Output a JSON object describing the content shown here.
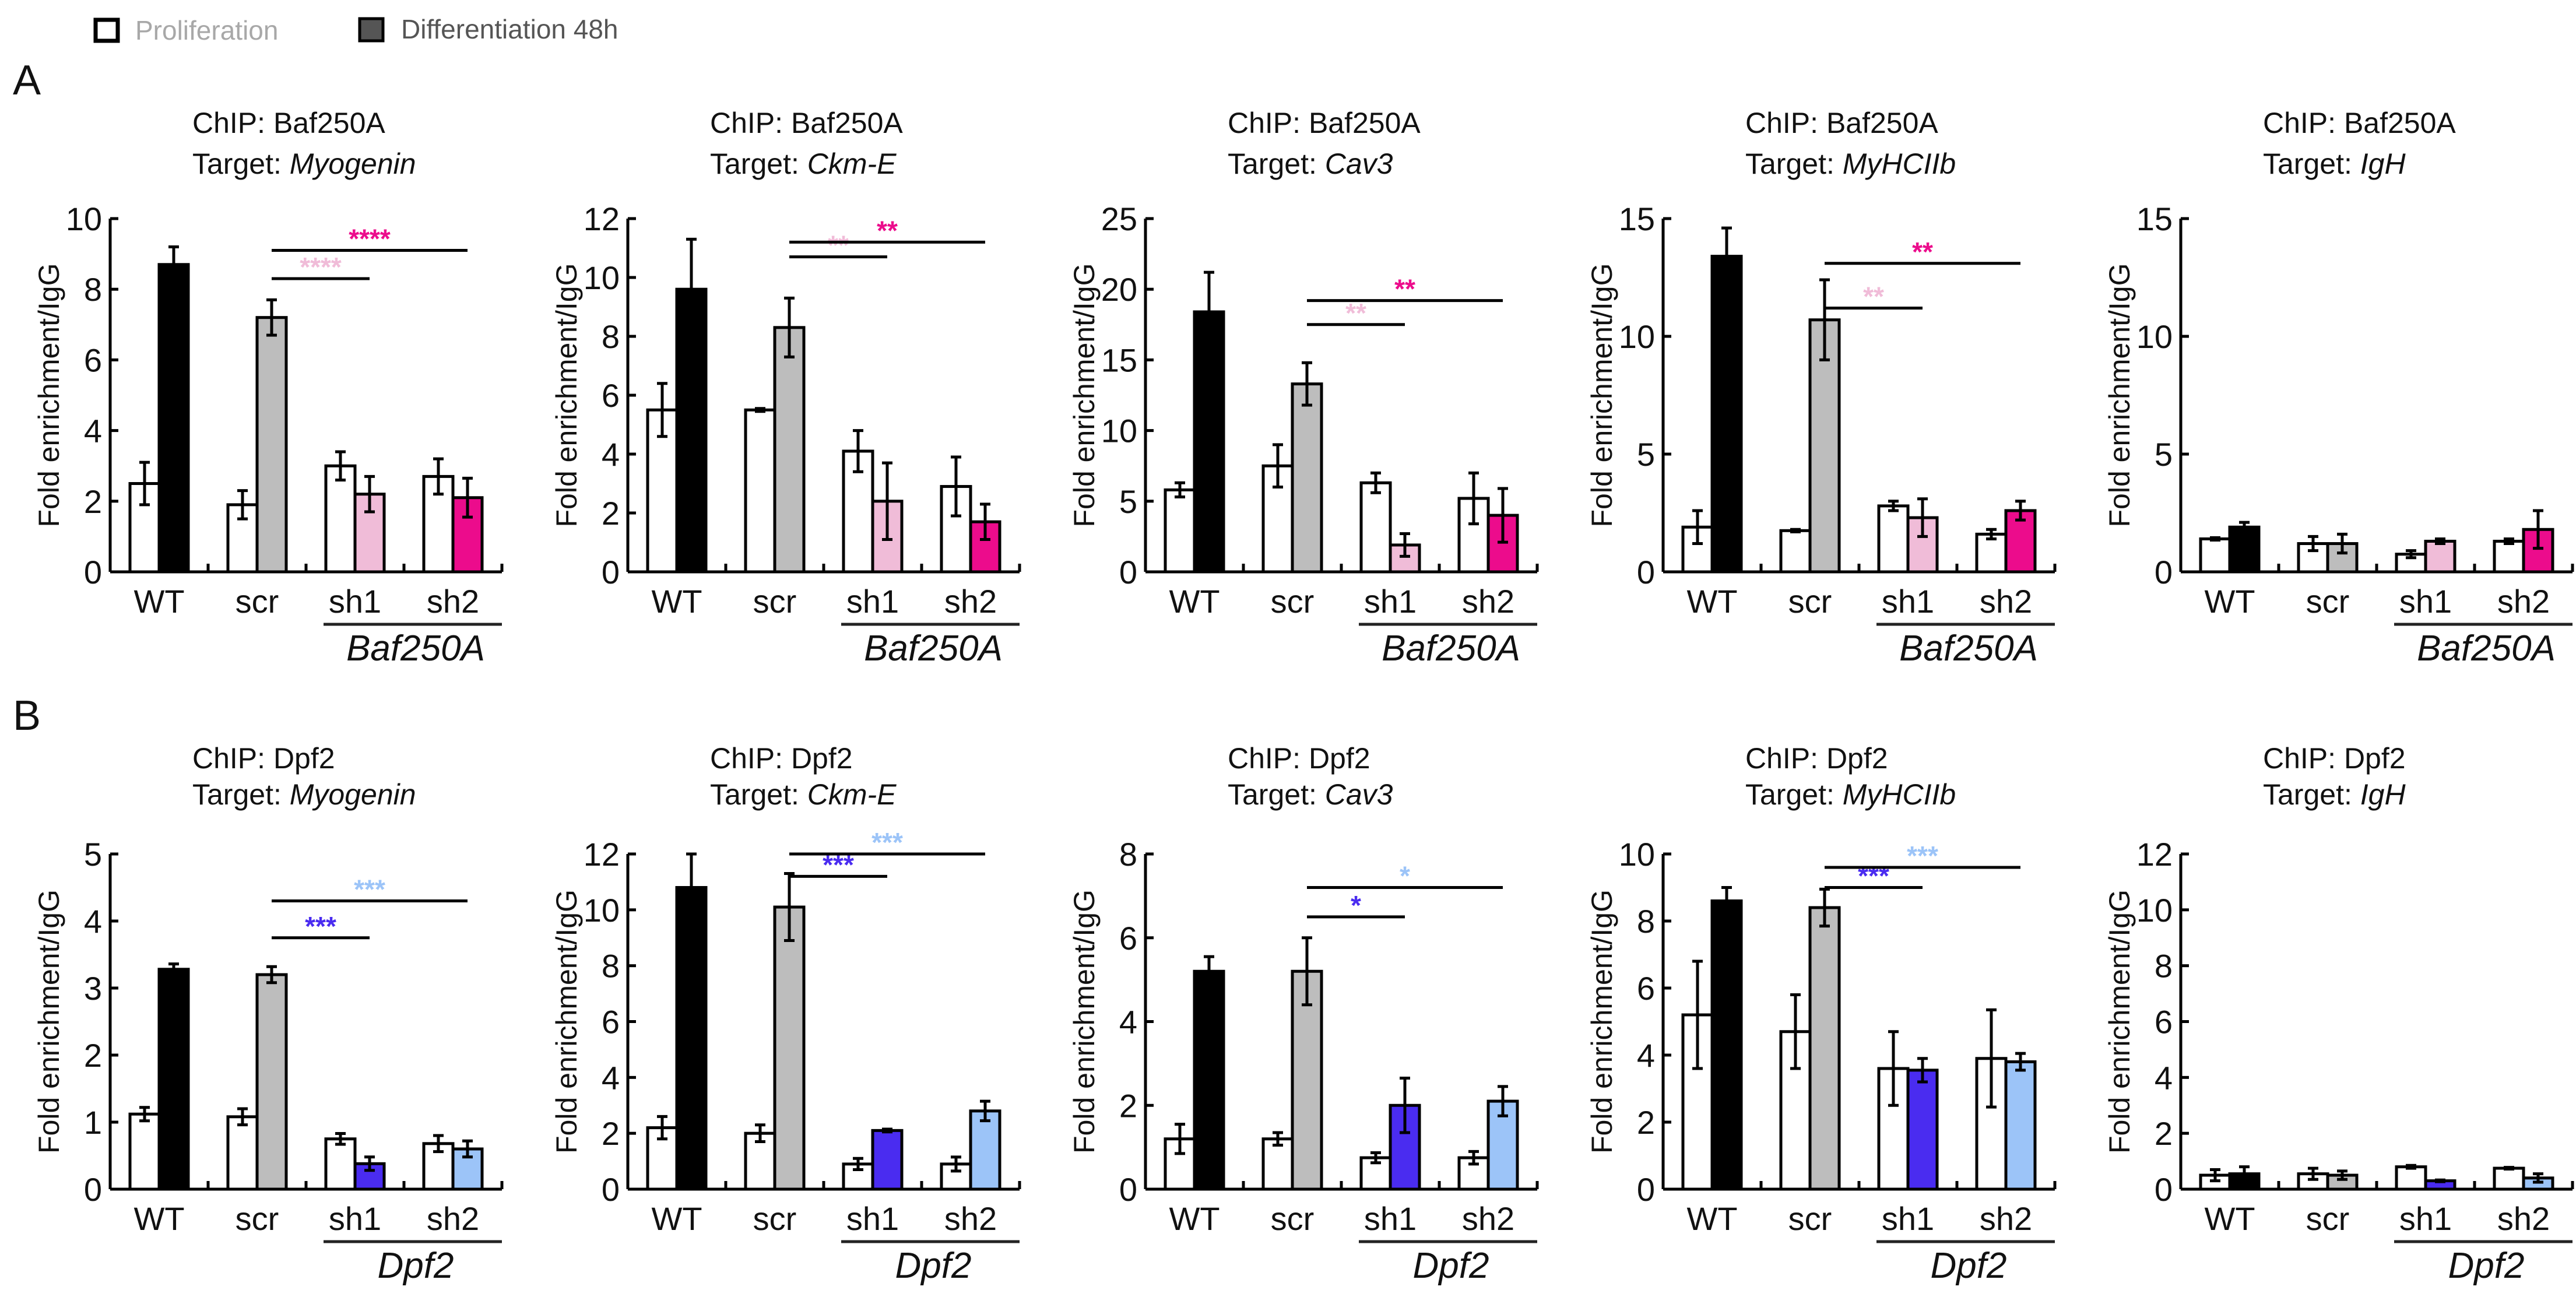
{
  "legend": {
    "items": [
      {
        "label": "Proliferation",
        "color": "#ffffff",
        "text_color": "#a8a8a8"
      },
      {
        "label": "Differentiation 48h",
        "color": "#555555",
        "text_color": "#555555"
      }
    ]
  },
  "panel_letters": [
    "A",
    "B"
  ],
  "chart_data": [
    {
      "type": "bar",
      "row": 0,
      "chip": "ChIP: Baf250A",
      "target_prefix": "Target: ",
      "target": "Myogenin",
      "ylabel": "Fold enrichment/IgG",
      "ylim": [
        0,
        10
      ],
      "yticks": [
        0,
        2,
        4,
        6,
        8,
        10
      ],
      "categories": [
        "WT",
        "scr",
        "sh1",
        "sh2"
      ],
      "group_label": "Baf250A",
      "series": [
        {
          "name": "Proliferation",
          "values": [
            2.5,
            1.9,
            3.0,
            2.7
          ],
          "errors": [
            0.6,
            0.4,
            0.4,
            0.5
          ]
        },
        {
          "name": "Differentiation 48h",
          "values": [
            8.7,
            7.2,
            2.2,
            2.1
          ],
          "errors": [
            0.5,
            0.5,
            0.5,
            0.55
          ]
        }
      ],
      "diff_colors": [
        "#000000",
        "#bdbdbd",
        "#f0bcd8",
        "#ec0c8c"
      ],
      "significance": [
        {
          "from": "scr",
          "to": "sh1",
          "label": "****",
          "color": "#f0bcd8",
          "y": 8.3
        },
        {
          "from": "scr",
          "to": "sh2",
          "label": "****",
          "color": "#ec0c8c",
          "y": 9.1
        }
      ]
    },
    {
      "type": "bar",
      "row": 0,
      "chip": "ChIP: Baf250A",
      "target_prefix": "Target: ",
      "target": "Ckm-E",
      "ylabel": "Fold enrichment/IgG",
      "ylim": [
        0,
        12
      ],
      "yticks": [
        0,
        2,
        4,
        6,
        8,
        10,
        12
      ],
      "categories": [
        "WT",
        "scr",
        "sh1",
        "sh2"
      ],
      "group_label": "Baf250A",
      "series": [
        {
          "name": "Proliferation",
          "values": [
            5.5,
            5.5,
            4.1,
            2.9
          ],
          "errors": [
            0.9,
            0.05,
            0.7,
            1.0
          ]
        },
        {
          "name": "Differentiation 48h",
          "values": [
            9.6,
            8.3,
            2.4,
            1.7
          ],
          "errors": [
            1.7,
            1.0,
            1.3,
            0.6
          ]
        }
      ],
      "diff_colors": [
        "#000000",
        "#bdbdbd",
        "#f0bcd8",
        "#ec0c8c"
      ],
      "significance": [
        {
          "from": "scr",
          "to": "sh1",
          "label": "**",
          "color": "#f0bcd8",
          "y": 10.7
        },
        {
          "from": "scr",
          "to": "sh2",
          "label": "**",
          "color": "#ec0c8c",
          "y": 11.2
        }
      ]
    },
    {
      "type": "bar",
      "row": 0,
      "chip": "ChIP: Baf250A",
      "target_prefix": "Target: ",
      "target": "Cav3",
      "ylabel": "Fold enrichment/IgG",
      "ylim": [
        0,
        25
      ],
      "yticks": [
        0,
        5,
        10,
        15,
        20,
        25
      ],
      "categories": [
        "WT",
        "scr",
        "sh1",
        "sh2"
      ],
      "group_label": "Baf250A",
      "series": [
        {
          "name": "Proliferation",
          "values": [
            5.8,
            7.5,
            6.3,
            5.2
          ],
          "errors": [
            0.5,
            1.5,
            0.7,
            1.8
          ]
        },
        {
          "name": "Differentiation 48h",
          "values": [
            18.4,
            13.3,
            1.9,
            4.0
          ],
          "errors": [
            2.8,
            1.5,
            0.8,
            1.9
          ]
        }
      ],
      "diff_colors": [
        "#000000",
        "#bdbdbd",
        "#f0bcd8",
        "#ec0c8c"
      ],
      "significance": [
        {
          "from": "scr",
          "to": "sh1",
          "label": "**",
          "color": "#f0bcd8",
          "y": 17.5
        },
        {
          "from": "scr",
          "to": "sh2",
          "label": "**",
          "color": "#ec0c8c",
          "y": 19.2
        }
      ]
    },
    {
      "type": "bar",
      "row": 0,
      "chip": "ChIP: Baf250A",
      "target_prefix": "Target: ",
      "target": "MyHCIIb",
      "ylabel": "Fold enrichment/IgG",
      "ylim": [
        0,
        15
      ],
      "yticks": [
        0,
        5,
        10,
        15
      ],
      "categories": [
        "WT",
        "scr",
        "sh1",
        "sh2"
      ],
      "group_label": "Baf250A",
      "series": [
        {
          "name": "Proliferation",
          "values": [
            1.9,
            1.75,
            2.8,
            1.6
          ],
          "errors": [
            0.7,
            0.05,
            0.2,
            0.2
          ]
        },
        {
          "name": "Differentiation 48h",
          "values": [
            13.4,
            10.7,
            2.3,
            2.6
          ],
          "errors": [
            1.2,
            1.7,
            0.8,
            0.4
          ]
        }
      ],
      "diff_colors": [
        "#000000",
        "#bdbdbd",
        "#f0bcd8",
        "#ec0c8c"
      ],
      "significance": [
        {
          "from": "scr",
          "to": "sh1",
          "label": "**",
          "color": "#f0bcd8",
          "y": 11.2
        },
        {
          "from": "scr",
          "to": "sh2",
          "label": "**",
          "color": "#ec0c8c",
          "y": 13.1
        }
      ]
    },
    {
      "type": "bar",
      "row": 0,
      "chip": "ChIP: Baf250A",
      "target_prefix": "Target: ",
      "target": "IgH",
      "ylabel": "Fold enrichment/IgG",
      "ylim": [
        0,
        15
      ],
      "yticks": [
        0,
        5,
        10,
        15
      ],
      "categories": [
        "WT",
        "scr",
        "sh1",
        "sh2"
      ],
      "group_label": "Baf250A",
      "series": [
        {
          "name": "Proliferation",
          "values": [
            1.4,
            1.2,
            0.75,
            1.3
          ],
          "errors": [
            0.05,
            0.3,
            0.15,
            0.1
          ]
        },
        {
          "name": "Differentiation 48h",
          "values": [
            1.9,
            1.2,
            1.3,
            1.8
          ],
          "errors": [
            0.2,
            0.4,
            0.1,
            0.8
          ]
        }
      ],
      "diff_colors": [
        "#000000",
        "#bdbdbd",
        "#f0bcd8",
        "#ec0c8c"
      ],
      "significance": []
    },
    {
      "type": "bar",
      "row": 1,
      "chip": "ChIP: Dpf2",
      "target_prefix": "Target: ",
      "target": "Myogenin",
      "ylabel": "Fold enrichment/IgG",
      "ylim": [
        0,
        5
      ],
      "yticks": [
        0,
        1,
        2,
        3,
        4,
        5
      ],
      "categories": [
        "WT",
        "scr",
        "sh1",
        "sh2"
      ],
      "group_label": "Dpf2",
      "series": [
        {
          "name": "Proliferation",
          "values": [
            1.12,
            1.08,
            0.75,
            0.68
          ],
          "errors": [
            0.1,
            0.12,
            0.08,
            0.12
          ]
        },
        {
          "name": "Differentiation 48h",
          "values": [
            3.28,
            3.2,
            0.38,
            0.6
          ],
          "errors": [
            0.08,
            0.12,
            0.1,
            0.12
          ]
        }
      ],
      "diff_colors": [
        "#000000",
        "#bdbdbd",
        "#4a2cf0",
        "#9cc4f8"
      ],
      "significance": [
        {
          "from": "scr",
          "to": "sh1",
          "label": "***",
          "color": "#4a2cf0",
          "y": 3.75
        },
        {
          "from": "scr",
          "to": "sh2",
          "label": "***",
          "color": "#9cc4f8",
          "y": 4.3
        }
      ]
    },
    {
      "type": "bar",
      "row": 1,
      "chip": "ChIP: Dpf2",
      "target_prefix": "Target: ",
      "target": "Ckm-E",
      "ylabel": "Fold enrichment/IgG",
      "ylim": [
        0,
        12
      ],
      "yticks": [
        0,
        2,
        4,
        6,
        8,
        10,
        12
      ],
      "categories": [
        "WT",
        "scr",
        "sh1",
        "sh2"
      ],
      "group_label": "Dpf2",
      "series": [
        {
          "name": "Proliferation",
          "values": [
            2.2,
            2.0,
            0.9,
            0.9
          ],
          "errors": [
            0.4,
            0.3,
            0.2,
            0.25
          ]
        },
        {
          "name": "Differentiation 48h",
          "values": [
            10.8,
            10.1,
            2.1,
            2.8
          ],
          "errors": [
            1.2,
            1.2,
            0.05,
            0.35
          ]
        }
      ],
      "diff_colors": [
        "#000000",
        "#bdbdbd",
        "#4a2cf0",
        "#9cc4f8"
      ],
      "significance": [
        {
          "from": "scr",
          "to": "sh1",
          "label": "***",
          "color": "#4a2cf0",
          "y": 11.2
        },
        {
          "from": "scr",
          "to": "sh2",
          "label": "***",
          "color": "#9cc4f8",
          "y": 12.0
        }
      ]
    },
    {
      "type": "bar",
      "row": 1,
      "chip": "ChIP: Dpf2",
      "target_prefix": "Target: ",
      "target": "Cav3",
      "ylabel": "Fold enrichment/IgG",
      "ylim": [
        0,
        8
      ],
      "yticks": [
        0,
        2,
        4,
        6,
        8
      ],
      "categories": [
        "WT",
        "scr",
        "sh1",
        "sh2"
      ],
      "group_label": "Dpf2",
      "series": [
        {
          "name": "Proliferation",
          "values": [
            1.2,
            1.2,
            0.75,
            0.75
          ],
          "errors": [
            0.35,
            0.15,
            0.12,
            0.15
          ]
        },
        {
          "name": "Differentiation 48h",
          "values": [
            5.2,
            5.2,
            2.0,
            2.1
          ],
          "errors": [
            0.35,
            0.8,
            0.65,
            0.35
          ]
        }
      ],
      "diff_colors": [
        "#000000",
        "#bdbdbd",
        "#4a2cf0",
        "#9cc4f8"
      ],
      "significance": [
        {
          "from": "scr",
          "to": "sh1",
          "label": "*",
          "color": "#4a2cf0",
          "y": 6.5
        },
        {
          "from": "scr",
          "to": "sh2",
          "label": "*",
          "color": "#9cc4f8",
          "y": 7.2
        }
      ]
    },
    {
      "type": "bar",
      "row": 1,
      "chip": "ChIP: Dpf2",
      "target_prefix": "Target: ",
      "target": "MyHCIIb",
      "ylabel": "Fold enrichment/IgG",
      "ylim": [
        0,
        10
      ],
      "yticks": [
        0,
        2,
        4,
        6,
        8,
        10
      ],
      "categories": [
        "WT",
        "scr",
        "sh1",
        "sh2"
      ],
      "group_label": "Dpf2",
      "series": [
        {
          "name": "Proliferation",
          "values": [
            5.2,
            4.7,
            3.6,
            3.9
          ],
          "errors": [
            1.6,
            1.1,
            1.1,
            1.45
          ]
        },
        {
          "name": "Differentiation 48h",
          "values": [
            8.6,
            8.4,
            3.55,
            3.8
          ],
          "errors": [
            0.4,
            0.55,
            0.35,
            0.25
          ]
        }
      ],
      "diff_colors": [
        "#000000",
        "#bdbdbd",
        "#4a2cf0",
        "#9cc4f8"
      ],
      "significance": [
        {
          "from": "scr",
          "to": "sh1",
          "label": "***",
          "color": "#4a2cf0",
          "y": 9.0
        },
        {
          "from": "scr",
          "to": "sh2",
          "label": "***",
          "color": "#9cc4f8",
          "y": 9.6
        }
      ]
    },
    {
      "type": "bar",
      "row": 1,
      "chip": "ChIP: Dpf2",
      "target_prefix": "Target: ",
      "target": "IgH",
      "ylabel": "Fold enrichment/IgG",
      "ylim": [
        0,
        12
      ],
      "yticks": [
        0,
        2,
        4,
        6,
        8,
        10,
        12
      ],
      "categories": [
        "WT",
        "scr",
        "sh1",
        "sh2"
      ],
      "group_label": "Dpf2",
      "series": [
        {
          "name": "Proliferation",
          "values": [
            0.5,
            0.55,
            0.8,
            0.75
          ],
          "errors": [
            0.2,
            0.2,
            0.05,
            0.03
          ]
        },
        {
          "name": "Differentiation 48h",
          "values": [
            0.55,
            0.5,
            0.3,
            0.4
          ],
          "errors": [
            0.25,
            0.15,
            0.03,
            0.15
          ]
        }
      ],
      "diff_colors": [
        "#000000",
        "#bdbdbd",
        "#4a2cf0",
        "#9cc4f8"
      ],
      "significance": []
    }
  ]
}
